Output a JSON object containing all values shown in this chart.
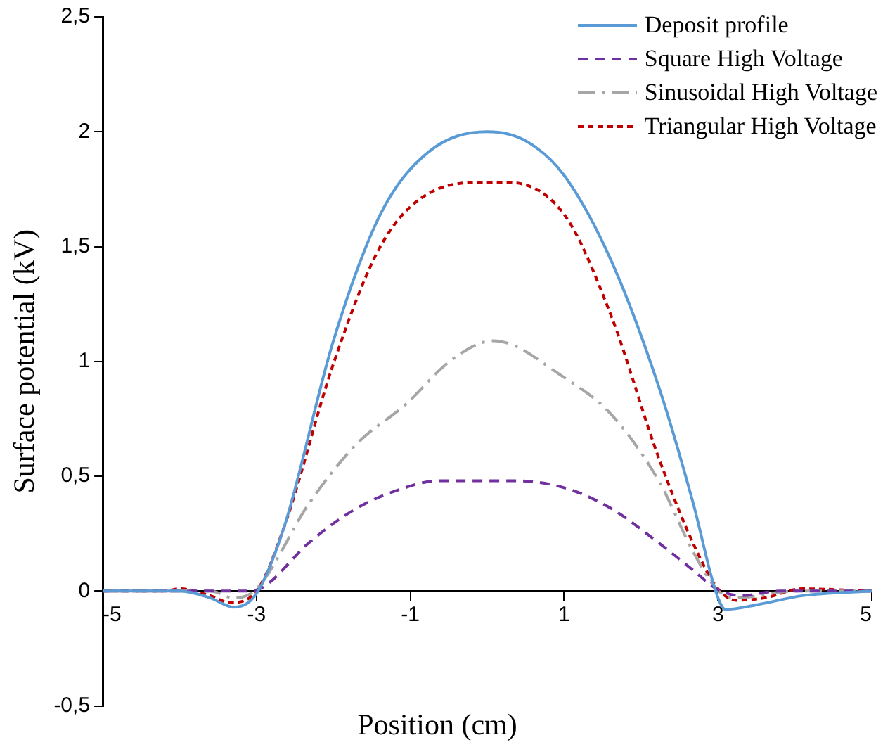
{
  "chart_data": {
    "type": "line",
    "xlabel": "Position (cm)",
    "ylabel": "Surface potential (kV)",
    "xlim": [
      -5,
      5
    ],
    "xticks": [
      -5,
      -3,
      -1,
      1,
      3,
      5
    ],
    "ylim": [
      -0.5,
      2.5
    ],
    "yticks": [
      {
        "value": -0.5,
        "label": "-0,5"
      },
      0,
      {
        "value": 0.5,
        "label": "0,5"
      },
      1,
      {
        "value": 1.5,
        "label": "1,5"
      },
      2,
      {
        "value": 2.5,
        "label": "2,5"
      }
    ],
    "grid": false,
    "legend": "top right",
    "marker": "none",
    "series": [
      {
        "name": "Deposit profile",
        "color": "#5b9bd5",
        "line_style": "solid",
        "x": [
          -5,
          -4,
          -3.6,
          -3.3,
          -3,
          -2.64,
          -2,
          -1.39,
          -0.77,
          0,
          0.5,
          1,
          1.61,
          2.23,
          2.68,
          2.98,
          3.1,
          3.5,
          4.1,
          5
        ],
        "values": [
          0,
          0,
          -0.03,
          -0.07,
          -0.01,
          0.28,
          1.09,
          1.64,
          1.91,
          2,
          1.96,
          1.81,
          1.44,
          0.89,
          0.38,
          -0.01,
          -0.08,
          -0.06,
          -0.02,
          0
        ]
      },
      {
        "name": "Square High Voltage",
        "color": "#7030a0",
        "line_style": "dashed",
        "x": [
          -5,
          -3.1,
          -2.9,
          -2.32,
          -1.7,
          -1.07,
          -0.64,
          0,
          0.36,
          1,
          1.61,
          2.23,
          2.68,
          2.98,
          3.3,
          3.8,
          5
        ],
        "values": [
          0,
          0,
          0.02,
          0.21,
          0.36,
          0.45,
          0.48,
          0.48,
          0.48,
          0.45,
          0.36,
          0.21,
          0.09,
          0.01,
          -0.02,
          0,
          0
        ]
      },
      {
        "name": "Sinusoidal High Voltage",
        "color": "#a6a6a6",
        "line_style": "dashdot",
        "x": [
          -5,
          -3.6,
          -3.3,
          -3,
          -2.32,
          -1.7,
          -1.07,
          -0.45,
          0.08,
          1,
          1.61,
          2.23,
          2.68,
          2.98,
          3.2,
          4,
          5
        ],
        "values": [
          0,
          0,
          -0.03,
          0.01,
          0.38,
          0.64,
          0.81,
          1.01,
          1.09,
          0.93,
          0.77,
          0.48,
          0.17,
          0.01,
          -0.03,
          0,
          0
        ]
      },
      {
        "name": "Triangular High Voltage",
        "color": "#c00000",
        "line_style": "dotted",
        "x": [
          -5,
          -4.2,
          -4,
          -3.6,
          -3.35,
          -3,
          -2.64,
          -2,
          -1.39,
          -0.77,
          0,
          0.24,
          1,
          1.61,
          2.23,
          2.73,
          3.0,
          3.24,
          3.6,
          4.1,
          5
        ],
        "values": [
          0,
          0,
          0.01,
          -0.02,
          -0.05,
          0.0,
          0.28,
          0.99,
          1.5,
          1.73,
          1.78,
          1.78,
          1.64,
          1.2,
          0.58,
          0.17,
          0.01,
          -0.04,
          -0.03,
          0.01,
          0
        ]
      }
    ]
  }
}
